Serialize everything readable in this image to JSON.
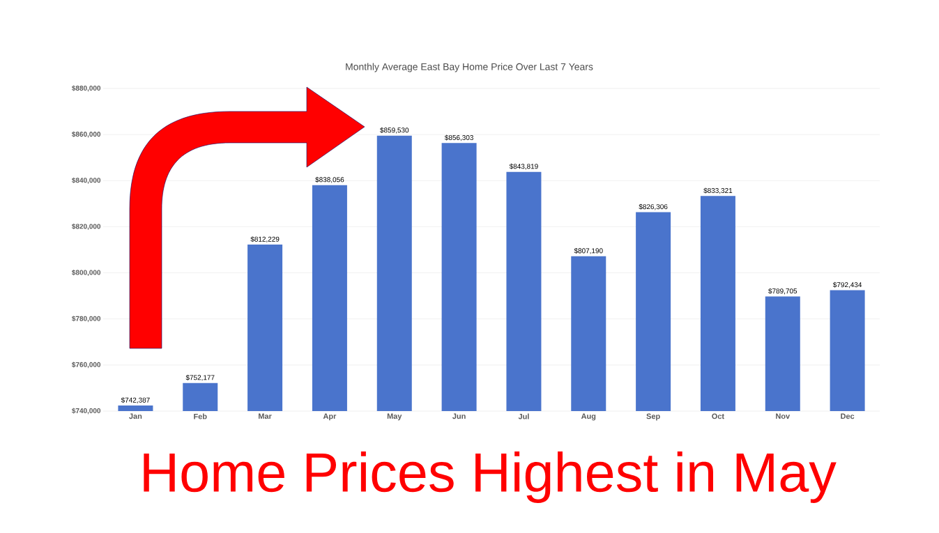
{
  "chart_data": {
    "type": "bar",
    "title": "Monthly Average East Bay Home Price Over Last 7 Years",
    "categories": [
      "Jan",
      "Feb",
      "Mar",
      "Apr",
      "May",
      "Jun",
      "Jul",
      "Aug",
      "Sep",
      "Oct",
      "Nov",
      "Dec"
    ],
    "values": [
      742387,
      752177,
      812229,
      838056,
      859530,
      856303,
      843819,
      807190,
      826306,
      833321,
      789705,
      792434
    ],
    "value_labels": [
      "$742,387",
      "$752,177",
      "$812,229",
      "$838,056",
      "$859,530",
      "$856,303",
      "$843,819",
      "$807,190",
      "$826,306",
      "$833,321",
      "$789,705",
      "$792,434"
    ],
    "color": "#4a74cc",
    "ylim": [
      740000,
      880000
    ],
    "yticks": [
      {
        "value": 740000,
        "label": "$740,000"
      },
      {
        "value": 760000,
        "label": "$760,000"
      },
      {
        "value": 780000,
        "label": "$780,000"
      },
      {
        "value": 800000,
        "label": "$800,000"
      },
      {
        "value": 820000,
        "label": "$820,000"
      },
      {
        "value": 840000,
        "label": "$840,000"
      },
      {
        "value": 860000,
        "label": "$860,000"
      },
      {
        "value": 880000,
        "label": "$880,000"
      }
    ],
    "grid": "y",
    "annotations": [
      "Home Prices Highest in May"
    ]
  }
}
